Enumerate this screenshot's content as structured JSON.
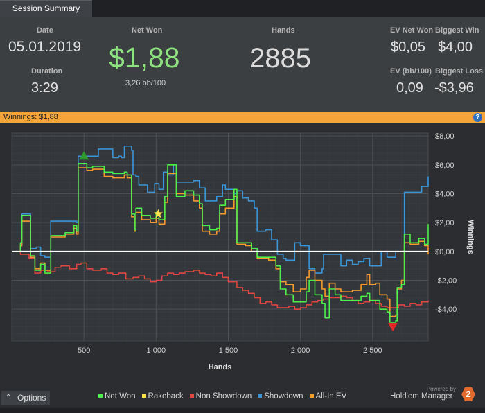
{
  "tab": {
    "label": "Session Summary"
  },
  "summary": {
    "date_label": "Date",
    "date_value": "05.01.2019",
    "duration_label": "Duration",
    "duration_value": "3:29",
    "netwon_label": "Net Won",
    "netwon_value": "$1,88",
    "netwon_sub": "3,26 bb/100",
    "hands_label": "Hands",
    "hands_value": "2885",
    "ev_netwon_label": "EV Net Won",
    "ev_netwon_value": "$0,05",
    "biggest_win_label": "Biggest Win",
    "biggest_win_value": "$4,00",
    "ev_bb_label": "EV (bb/100)",
    "ev_bb_value": "0,09",
    "biggest_loss_label": "Biggest Loss",
    "biggest_loss_value": "-$3,96"
  },
  "winnings_bar": {
    "text": "Winnings:  $1,88",
    "help": "?"
  },
  "footer": {
    "options_label": "Options",
    "powered_by": "Powered by",
    "brand": "Hold'em Manager",
    "brand_version": "2"
  },
  "colors": {
    "net_won": "#4ef04a",
    "rakeback": "#ffe14d",
    "non_showdown": "#e0473e",
    "showdown": "#3b95d9",
    "allin_ev": "#f79a2e",
    "accent": "#f5a43a"
  },
  "chart_data": {
    "type": "line",
    "xlabel": "Hands",
    "ylabel": "Winnings",
    "xlim": [
      0,
      2885
    ],
    "ylim": [
      -6.2,
      8.2
    ],
    "x_ticks": [
      500,
      1000,
      1500,
      2000,
      2500
    ],
    "x_tick_labels": [
      "500",
      "1 000",
      "1 500",
      "2 000",
      "2 500"
    ],
    "y_ticks": [
      8,
      6,
      4,
      2,
      0,
      -2,
      -4
    ],
    "y_tick_labels": [
      "$8,00",
      "$6,00",
      "$4,00",
      "$2,00",
      "$0,00",
      "-$2,00",
      "-$4,00"
    ],
    "grid": true,
    "legend_position": "bottom",
    "markers": [
      {
        "name": "Biggest Win",
        "x": 500,
        "y": 6.6,
        "shape": "triangle-up",
        "color": "#2e9b2e"
      },
      {
        "name": "Rakeback",
        "x": 1015,
        "y": 2.6,
        "shape": "star",
        "color": "#ffe14d"
      },
      {
        "name": "Biggest Loss",
        "x": 2640,
        "y": -5.2,
        "shape": "triangle-down",
        "color": "#e02a2a"
      }
    ],
    "series": [
      {
        "name": "Net Won",
        "color": "#4ef04a",
        "points": [
          [
            0,
            0
          ],
          [
            60,
            0.6
          ],
          [
            70,
            2.5
          ],
          [
            120,
            2.5
          ],
          [
            130,
            -0.3
          ],
          [
            160,
            -1.3
          ],
          [
            200,
            -0.9
          ],
          [
            230,
            -1.5
          ],
          [
            270,
            1.1
          ],
          [
            300,
            1.1
          ],
          [
            370,
            1.3
          ],
          [
            430,
            1.8
          ],
          [
            450,
            1.4
          ],
          [
            460,
            6.1
          ],
          [
            520,
            5.8
          ],
          [
            560,
            5.9
          ],
          [
            640,
            5.5
          ],
          [
            700,
            5.4
          ],
          [
            780,
            5.5
          ],
          [
            800,
            5.3
          ],
          [
            830,
            2.6
          ],
          [
            850,
            1.5
          ],
          [
            860,
            3.0
          ],
          [
            900,
            2.5
          ],
          [
            960,
            2.3
          ],
          [
            1000,
            2.7
          ],
          [
            1020,
            2.2
          ],
          [
            1060,
            3.8
          ],
          [
            1080,
            6.0
          ],
          [
            1140,
            3.8
          ],
          [
            1200,
            4.2
          ],
          [
            1260,
            3.9
          ],
          [
            1300,
            3.3
          ],
          [
            1320,
            1.8
          ],
          [
            1370,
            1.5
          ],
          [
            1420,
            1.6
          ],
          [
            1440,
            3.2
          ],
          [
            1480,
            3.6
          ],
          [
            1540,
            4.3
          ],
          [
            1560,
            0.6
          ],
          [
            1620,
            0.6
          ],
          [
            1660,
            0.2
          ],
          [
            1700,
            -0.4
          ],
          [
            1780,
            -0.4
          ],
          [
            1830,
            -1.0
          ],
          [
            1860,
            -2.6
          ],
          [
            1900,
            -3.0
          ],
          [
            1950,
            -3.5
          ],
          [
            2000,
            -3.5
          ],
          [
            2040,
            -2.8
          ],
          [
            2060,
            -2.0
          ],
          [
            2100,
            -3.0
          ],
          [
            2150,
            -3.6
          ],
          [
            2170,
            -4.6
          ],
          [
            2200,
            -2.6
          ],
          [
            2240,
            -3.0
          ],
          [
            2280,
            -3.4
          ],
          [
            2360,
            -3.4
          ],
          [
            2420,
            -3.1
          ],
          [
            2460,
            -2.9
          ],
          [
            2480,
            -3.4
          ],
          [
            2520,
            -3.4
          ],
          [
            2550,
            -4.0
          ],
          [
            2600,
            -4.2
          ],
          [
            2620,
            -4.9
          ],
          [
            2660,
            -4.8
          ],
          [
            2670,
            -2.5
          ],
          [
            2700,
            -2.3
          ],
          [
            2720,
            1.2
          ],
          [
            2760,
            0.6
          ],
          [
            2820,
            0.9
          ],
          [
            2860,
            0.5
          ],
          [
            2885,
            1.9
          ]
        ]
      },
      {
        "name": "All-In EV",
        "color": "#f79a2e",
        "points": [
          [
            0,
            0
          ],
          [
            60,
            0.4
          ],
          [
            70,
            2.1
          ],
          [
            120,
            2.1
          ],
          [
            130,
            -0.4
          ],
          [
            160,
            -1.2
          ],
          [
            200,
            -0.8
          ],
          [
            230,
            -1.3
          ],
          [
            270,
            1.0
          ],
          [
            300,
            1.0
          ],
          [
            370,
            1.2
          ],
          [
            430,
            1.6
          ],
          [
            450,
            1.2
          ],
          [
            460,
            5.8
          ],
          [
            520,
            5.6
          ],
          [
            560,
            5.7
          ],
          [
            640,
            5.2
          ],
          [
            700,
            5.1
          ],
          [
            780,
            5.3
          ],
          [
            800,
            5.1
          ],
          [
            830,
            2.4
          ],
          [
            850,
            1.4
          ],
          [
            860,
            2.7
          ],
          [
            900,
            2.2
          ],
          [
            960,
            2.0
          ],
          [
            1000,
            2.3
          ],
          [
            1020,
            1.9
          ],
          [
            1060,
            3.4
          ],
          [
            1080,
            5.4
          ],
          [
            1140,
            4.0
          ],
          [
            1200,
            3.9
          ],
          [
            1260,
            3.5
          ],
          [
            1300,
            3.0
          ],
          [
            1320,
            1.4
          ],
          [
            1370,
            1.2
          ],
          [
            1420,
            1.4
          ],
          [
            1440,
            2.6
          ],
          [
            1480,
            3.0
          ],
          [
            1540,
            3.8
          ],
          [
            1560,
            0.5
          ],
          [
            1620,
            0.4
          ],
          [
            1660,
            0.0
          ],
          [
            1700,
            -0.5
          ],
          [
            1780,
            -0.6
          ],
          [
            1830,
            -1.2
          ],
          [
            1860,
            -2.1
          ],
          [
            1900,
            -2.3
          ],
          [
            1950,
            -2.8
          ],
          [
            2000,
            -2.6
          ],
          [
            2040,
            -1.8
          ],
          [
            2060,
            -1.3
          ],
          [
            2100,
            -2.0
          ],
          [
            2150,
            -2.6
          ],
          [
            2170,
            -3.1
          ],
          [
            2200,
            -2.2
          ],
          [
            2240,
            -2.6
          ],
          [
            2280,
            -2.8
          ],
          [
            2360,
            -2.7
          ],
          [
            2420,
            -2.3
          ],
          [
            2460,
            -1.6
          ],
          [
            2480,
            -2.3
          ],
          [
            2520,
            -2.2
          ],
          [
            2550,
            -3.0
          ],
          [
            2600,
            -3.3
          ],
          [
            2620,
            -4.5
          ],
          [
            2660,
            -4.4
          ],
          [
            2670,
            -2.6
          ],
          [
            2700,
            -2.0
          ],
          [
            2720,
            0.6
          ],
          [
            2760,
            0.5
          ],
          [
            2820,
            0.7
          ],
          [
            2860,
            0.4
          ],
          [
            2885,
            -0.2
          ]
        ]
      },
      {
        "name": "Showdown",
        "color": "#3b95d9",
        "points": [
          [
            0,
            0
          ],
          [
            60,
            0.4
          ],
          [
            70,
            2.6
          ],
          [
            120,
            2.6
          ],
          [
            130,
            0.2
          ],
          [
            170,
            0.3
          ],
          [
            200,
            -0.3
          ],
          [
            230,
            -0.4
          ],
          [
            270,
            2.1
          ],
          [
            420,
            2.1
          ],
          [
            450,
            2.0
          ],
          [
            460,
            6.6
          ],
          [
            520,
            6.6
          ],
          [
            600,
            7.1
          ],
          [
            700,
            6.5
          ],
          [
            740,
            6.6
          ],
          [
            760,
            6.5
          ],
          [
            780,
            7.3
          ],
          [
            830,
            7.0
          ],
          [
            840,
            5.3
          ],
          [
            860,
            5.2
          ],
          [
            880,
            4.6
          ],
          [
            940,
            4.1
          ],
          [
            990,
            4.7
          ],
          [
            1020,
            4.3
          ],
          [
            1050,
            5.5
          ],
          [
            1080,
            5.3
          ],
          [
            1120,
            6.0
          ],
          [
            1140,
            4.8
          ],
          [
            1200,
            4.8
          ],
          [
            1260,
            4.9
          ],
          [
            1300,
            4.4
          ],
          [
            1340,
            3.5
          ],
          [
            1380,
            3.5
          ],
          [
            1420,
            3.8
          ],
          [
            1460,
            4.6
          ],
          [
            1480,
            4.3
          ],
          [
            1540,
            4.0
          ],
          [
            1560,
            4.2
          ],
          [
            1600,
            3.7
          ],
          [
            1640,
            3.5
          ],
          [
            1680,
            3.0
          ],
          [
            1700,
            1.4
          ],
          [
            1760,
            1.5
          ],
          [
            1800,
            0.8
          ],
          [
            1840,
            -0.2
          ],
          [
            1880,
            -0.5
          ],
          [
            1900,
            -0.6
          ],
          [
            1960,
            0.6
          ],
          [
            2000,
            0.4
          ],
          [
            2060,
            -1.2
          ],
          [
            2100,
            -1.5
          ],
          [
            2150,
            -1.2
          ],
          [
            2160,
            -0.2
          ],
          [
            2200,
            -0.2
          ],
          [
            2280,
            -1.0
          ],
          [
            2320,
            -0.6
          ],
          [
            2360,
            -0.9
          ],
          [
            2400,
            -0.7
          ],
          [
            2440,
            -0.5
          ],
          [
            2480,
            -1.0
          ],
          [
            2520,
            -1.0
          ],
          [
            2560,
            0.0
          ],
          [
            2600,
            -0.4
          ],
          [
            2640,
            -0.4
          ],
          [
            2660,
            0.0
          ],
          [
            2700,
            0.0
          ],
          [
            2720,
            4.1
          ],
          [
            2780,
            4.1
          ],
          [
            2840,
            4.5
          ],
          [
            2860,
            4.5
          ],
          [
            2885,
            5.2
          ]
        ]
      },
      {
        "name": "Non Showdown",
        "color": "#e0473e",
        "points": [
          [
            0,
            0
          ],
          [
            60,
            -0.2
          ],
          [
            120,
            -0.5
          ],
          [
            160,
            -1.5
          ],
          [
            200,
            -1.3
          ],
          [
            250,
            -1.4
          ],
          [
            300,
            -1.1
          ],
          [
            340,
            -1.0
          ],
          [
            400,
            -1.2
          ],
          [
            450,
            -0.9
          ],
          [
            480,
            -0.8
          ],
          [
            520,
            -1.2
          ],
          [
            560,
            -1.3
          ],
          [
            620,
            -1.2
          ],
          [
            660,
            -1.5
          ],
          [
            700,
            -1.6
          ],
          [
            740,
            -1.5
          ],
          [
            790,
            -1.9
          ],
          [
            840,
            -1.8
          ],
          [
            880,
            -1.7
          ],
          [
            920,
            -1.9
          ],
          [
            960,
            -2.1
          ],
          [
            1000,
            -2.0
          ],
          [
            1040,
            -1.7
          ],
          [
            1080,
            -1.5
          ],
          [
            1120,
            -1.6
          ],
          [
            1160,
            -1.5
          ],
          [
            1200,
            -1.4
          ],
          [
            1260,
            -1.3
          ],
          [
            1300,
            -1.5
          ],
          [
            1340,
            -1.6
          ],
          [
            1380,
            -1.7
          ],
          [
            1420,
            -1.5
          ],
          [
            1460,
            -1.8
          ],
          [
            1500,
            -2.1
          ],
          [
            1560,
            -2.5
          ],
          [
            1600,
            -2.7
          ],
          [
            1640,
            -2.9
          ],
          [
            1680,
            -3.2
          ],
          [
            1720,
            -3.6
          ],
          [
            1760,
            -3.5
          ],
          [
            1800,
            -3.7
          ],
          [
            1840,
            -3.9
          ],
          [
            1880,
            -3.9
          ],
          [
            1920,
            -3.8
          ],
          [
            1960,
            -4.0
          ],
          [
            2000,
            -3.9
          ],
          [
            2040,
            -3.7
          ],
          [
            2080,
            -3.5
          ],
          [
            2120,
            -3.4
          ],
          [
            2160,
            -3.3
          ],
          [
            2200,
            -3.2
          ],
          [
            2240,
            -3.2
          ],
          [
            2280,
            -3.1
          ],
          [
            2320,
            -3.2
          ],
          [
            2360,
            -3.4
          ],
          [
            2400,
            -3.6
          ],
          [
            2440,
            -3.5
          ],
          [
            2480,
            -3.4
          ],
          [
            2520,
            -3.6
          ],
          [
            2560,
            -3.8
          ],
          [
            2600,
            -3.9
          ],
          [
            2640,
            -3.9
          ],
          [
            2680,
            -3.7
          ],
          [
            2720,
            -3.8
          ],
          [
            2760,
            -3.6
          ],
          [
            2800,
            -3.7
          ],
          [
            2840,
            -3.5
          ],
          [
            2885,
            -3.4
          ]
        ]
      }
    ]
  }
}
